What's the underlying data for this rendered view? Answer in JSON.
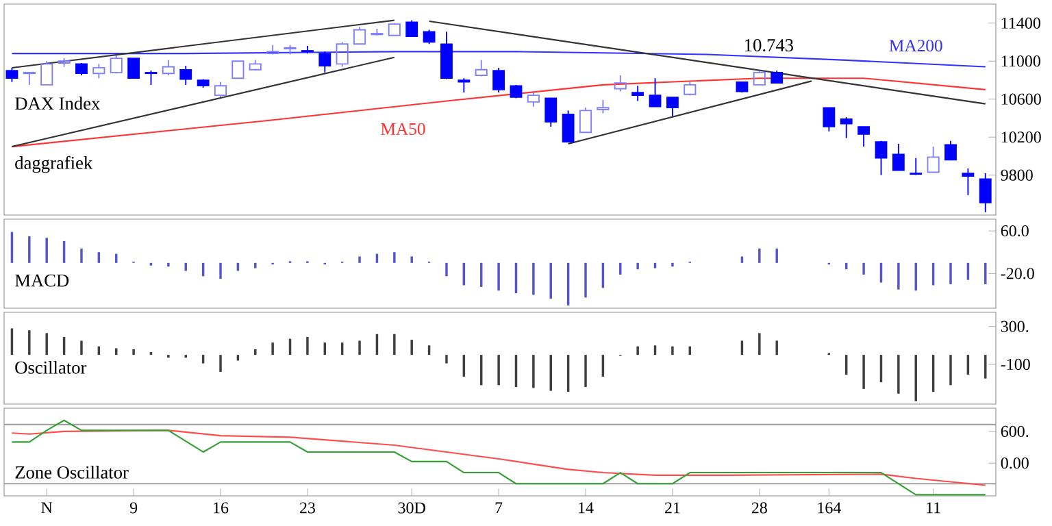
{
  "chart_data": [
    {
      "type": "candlestick",
      "title": "DAX Index",
      "subtitle": "daggrafiek",
      "categories": [
        null,
        null,
        null,
        null,
        null,
        null,
        null,
        null,
        null,
        null,
        null,
        null,
        null,
        null,
        null,
        null,
        null,
        null,
        null,
        null,
        null,
        null,
        null,
        null,
        null,
        null,
        null,
        null,
        null,
        null,
        null,
        null,
        null,
        null,
        null,
        null,
        null,
        null,
        null,
        null,
        null,
        null,
        null,
        null,
        null,
        null,
        null,
        null,
        null,
        null,
        null,
        null,
        null,
        null,
        null,
        null,
        null
      ],
      "colors": [
        "#0000ff",
        "#8080ff",
        "#8080ff",
        "#8080ff",
        "#0000ff",
        "#8080ff",
        "#8080ff",
        "#0000ff",
        "#0000ff",
        "#8080ff",
        "#0000ff",
        "#0000ff",
        "#8080ff",
        "#8080ff",
        "#8080ff",
        "#8080ff",
        "#8080ff",
        "#0000ff",
        "#0000ff",
        "#8080ff",
        "#8080ff",
        "#8080ff",
        "#8080ff",
        "#0000ff",
        "#0000ff",
        "#0000ff",
        "#0000ff",
        "#8080ff",
        "#0000ff",
        "#0000ff",
        "#8080ff",
        "#0000ff",
        "#0000ff",
        "#8080ff",
        "#8080ff",
        "#8080ff",
        "#0000ff",
        "#0000ff",
        "#0000ff",
        "#8080ff",
        null,
        null,
        "#0000ff",
        "#8080ff",
        "#0000ff",
        null,
        null,
        "#0000ff",
        "#0000ff",
        "#0000ff",
        "#0000ff",
        "#0000ff",
        "#0000ff",
        "#8080ff",
        "#0000ff",
        "#0000ff",
        "#0000ff"
      ],
      "ohlc": [
        [
          10900,
          10930,
          10780,
          10820
        ],
        [
          10870,
          10880,
          10750,
          10880
        ],
        [
          10750,
          11000,
          10750,
          10970
        ],
        [
          10980,
          11030,
          10940,
          11000
        ],
        [
          10970,
          10980,
          10850,
          10870
        ],
        [
          10870,
          10970,
          10820,
          10930
        ],
        [
          10880,
          11060,
          10870,
          11030
        ],
        [
          11030,
          11030,
          10820,
          10820
        ],
        [
          10880,
          10900,
          10750,
          10870
        ],
        [
          10870,
          11010,
          10850,
          10940
        ],
        [
          10910,
          10950,
          10750,
          10810
        ],
        [
          10800,
          10810,
          10720,
          10740
        ],
        [
          10640,
          10780,
          10620,
          10740
        ],
        [
          10820,
          11000,
          10820,
          11000
        ],
        [
          10910,
          11010,
          10900,
          10970
        ],
        [
          11080,
          11170,
          11070,
          11100
        ],
        [
          11130,
          11170,
          11070,
          11140
        ],
        [
          11110,
          11160,
          11080,
          11100
        ],
        [
          11080,
          11100,
          10880,
          10950
        ],
        [
          10970,
          11200,
          10940,
          11180
        ],
        [
          11180,
          11360,
          11180,
          11330
        ],
        [
          11280,
          11340,
          11270,
          11290
        ],
        [
          11270,
          11400,
          11270,
          11390
        ],
        [
          11410,
          11430,
          11260,
          11260
        ],
        [
          11310,
          11330,
          11180,
          11200
        ],
        [
          11180,
          11310,
          10810,
          10820
        ],
        [
          10800,
          10820,
          10670,
          10780
        ],
        [
          10850,
          11010,
          10840,
          10910
        ],
        [
          10900,
          10930,
          10670,
          10700
        ],
        [
          10740,
          10750,
          10610,
          10620
        ],
        [
          10570,
          10670,
          10520,
          10640
        ],
        [
          10610,
          10610,
          10310,
          10360
        ],
        [
          10440,
          10480,
          10150,
          10150
        ],
        [
          10250,
          10510,
          10250,
          10480
        ],
        [
          10490,
          10590,
          10450,
          10510
        ],
        [
          10710,
          10850,
          10680,
          10770
        ],
        [
          10670,
          10740,
          10580,
          10640
        ],
        [
          10640,
          10820,
          10520,
          10520
        ],
        [
          10620,
          10620,
          10420,
          10510
        ],
        [
          10650,
          10780,
          10640,
          10750
        ],
        null,
        null,
        [
          10780,
          10780,
          10670,
          10680
        ],
        [
          10750,
          10900,
          10750,
          10880
        ],
        [
          10880,
          10900,
          10770,
          10770
        ],
        null,
        null,
        [
          10510,
          10510,
          10260,
          10310
        ],
        [
          10390,
          10410,
          10190,
          10340
        ],
        [
          10310,
          10310,
          10100,
          10230
        ],
        [
          10150,
          10160,
          9800,
          9980
        ],
        [
          10020,
          10130,
          9850,
          9850
        ],
        [
          9820,
          9980,
          9800,
          9810
        ],
        [
          9830,
          10100,
          9830,
          9990
        ],
        [
          10120,
          10160,
          9960,
          9960
        ],
        [
          9820,
          9870,
          9590,
          9790
        ],
        [
          9760,
          9820,
          9410,
          9510
        ]
      ],
      "series": [
        {
          "type": "line",
          "name": "MA200",
          "color": "#3333ff",
          "values": [
            11080,
            null,
            null,
            null,
            null,
            null,
            null,
            null,
            null,
            null,
            11080,
            null,
            null,
            null,
            null,
            null,
            null,
            null,
            null,
            null,
            null,
            null,
            11100,
            null,
            null,
            null,
            null,
            null,
            null,
            11100,
            null,
            null,
            null,
            null,
            null,
            null,
            null,
            null,
            null,
            null,
            11070,
            null,
            null,
            null,
            null,
            null,
            null,
            null,
            11010,
            null,
            null,
            null,
            null,
            null,
            null,
            null,
            10940
          ]
        },
        {
          "type": "line",
          "name": "MA50",
          "color": "#ff3333",
          "values": [
            10100,
            null,
            null,
            null,
            null,
            null,
            null,
            null,
            null,
            null,
            null,
            null,
            null,
            null,
            null,
            10380,
            null,
            null,
            null,
            null,
            null,
            null,
            null,
            null,
            null,
            10580,
            null,
            null,
            null,
            null,
            null,
            null,
            null,
            null,
            10750,
            null,
            null,
            null,
            null,
            null,
            null,
            null,
            null,
            10820,
            null,
            null,
            null,
            null,
            null,
            10820,
            null,
            null,
            null,
            null,
            null,
            null,
            10700
          ]
        },
        {
          "type": "line",
          "color": "#333333",
          "values": [
            10930,
            null,
            null,
            null,
            null,
            null,
            null,
            null,
            null,
            null,
            null,
            null,
            null,
            null,
            null,
            null,
            null,
            null,
            null,
            null,
            null,
            null,
            11430,
            null,
            null,
            null,
            null,
            null,
            null,
            null,
            null,
            null,
            null,
            null,
            null,
            null,
            null,
            null,
            null,
            null,
            null,
            null,
            null,
            null,
            null,
            null,
            null,
            null,
            null,
            null,
            null,
            null,
            null,
            null,
            null,
            null,
            null
          ]
        },
        {
          "type": "line",
          "color": "#333333",
          "values": [
            10100,
            null,
            null,
            null,
            null,
            null,
            null,
            null,
            null,
            null,
            null,
            null,
            null,
            null,
            null,
            null,
            null,
            null,
            null,
            null,
            null,
            null,
            11040,
            null,
            null,
            null,
            null,
            null,
            null,
            null,
            null,
            null,
            null,
            null,
            null,
            null,
            null,
            null,
            null,
            null,
            null,
            null,
            null,
            null,
            null,
            null,
            null,
            null,
            null,
            null,
            null,
            null,
            null,
            null,
            null,
            null,
            null
          ]
        },
        {
          "type": "line",
          "color": "#333333",
          "values": [
            null,
            null,
            null,
            null,
            null,
            null,
            null,
            null,
            null,
            null,
            null,
            null,
            null,
            null,
            null,
            null,
            null,
            null,
            null,
            null,
            null,
            null,
            null,
            null,
            11420,
            null,
            null,
            null,
            null,
            null,
            null,
            null,
            null,
            null,
            null,
            null,
            null,
            null,
            null,
            null,
            null,
            null,
            null,
            null,
            null,
            null,
            null,
            null,
            null,
            null,
            null,
            null,
            null,
            null,
            null,
            null,
            10550
          ]
        },
        {
          "type": "line",
          "color": "#333333",
          "values": [
            null,
            null,
            null,
            null,
            null,
            null,
            null,
            null,
            null,
            null,
            null,
            null,
            null,
            null,
            null,
            null,
            null,
            null,
            null,
            null,
            null,
            null,
            null,
            null,
            null,
            null,
            null,
            null,
            null,
            null,
            null,
            null,
            10130,
            null,
            null,
            null,
            null,
            null,
            null,
            null,
            null,
            null,
            null,
            null,
            null,
            null,
            10790,
            null,
            null,
            null,
            null,
            null,
            null,
            null,
            null,
            null,
            null
          ]
        }
      ],
      "ylim": [
        9380,
        11600
      ],
      "yticks": [
        11400,
        11000,
        10600,
        10200,
        9800
      ],
      "tick_labels": "y",
      "annotations": [
        "10.743"
      ]
    },
    {
      "type": "bar",
      "title": "MACD",
      "color": "#5555cc",
      "categories": [
        null,
        null,
        null,
        null,
        null,
        null,
        null,
        null,
        null,
        null,
        null,
        null,
        null,
        null,
        null,
        null,
        null,
        null,
        null,
        null,
        null,
        null,
        null,
        null,
        null,
        null,
        null,
        null,
        null,
        null,
        null,
        null,
        null,
        null,
        null,
        null,
        null,
        null,
        null,
        null,
        null,
        null,
        null,
        null,
        null,
        null,
        null,
        null,
        null,
        null,
        null,
        null,
        null,
        null,
        null,
        null,
        null
      ],
      "values": [
        58,
        50,
        47,
        41,
        27,
        20,
        17,
        2,
        -5,
        -7,
        -15,
        -25,
        -30,
        -15,
        -10,
        -3,
        3,
        3,
        -3,
        2,
        12,
        17,
        20,
        12,
        2,
        -25,
        -42,
        -45,
        -52,
        -57,
        -60,
        -67,
        -80,
        -65,
        -47,
        -22,
        -12,
        -10,
        -7,
        2,
        null,
        null,
        12,
        27,
        27,
        null,
        null,
        -3,
        -12,
        -22,
        -37,
        -50,
        -52,
        -42,
        -40,
        -32,
        -40
      ],
      "ylim": [
        -85,
        82
      ],
      "yticks": [
        {
          "value": 60,
          "label": "60.0"
        },
        {
          "value": -20,
          "label": "-20.0"
        }
      ],
      "tick_labels": "y"
    },
    {
      "type": "bar",
      "title": "Oscillator",
      "color": "#404040",
      "categories": [
        null,
        null,
        null,
        null,
        null,
        null,
        null,
        null,
        null,
        null,
        null,
        null,
        null,
        null,
        null,
        null,
        null,
        null,
        null,
        null,
        null,
        null,
        null,
        null,
        null,
        null,
        null,
        null,
        null,
        null,
        null,
        null,
        null,
        null,
        null,
        null,
        null,
        null,
        null,
        null,
        null,
        null,
        null,
        null,
        null,
        null,
        null,
        null,
        null,
        null,
        null,
        null,
        null,
        null,
        null,
        null,
        null
      ],
      "values": [
        280,
        260,
        230,
        190,
        150,
        90,
        70,
        60,
        30,
        -30,
        -30,
        -90,
        -180,
        -60,
        60,
        130,
        170,
        190,
        130,
        130,
        150,
        220,
        220,
        160,
        100,
        -90,
        -230,
        -320,
        -320,
        -340,
        -350,
        -380,
        -390,
        -340,
        -230,
        -10,
        90,
        100,
        90,
        90,
        null,
        null,
        150,
        230,
        150,
        null,
        null,
        20,
        -210,
        -360,
        -290,
        -410,
        -490,
        -390,
        -320,
        -210,
        -250
      ],
      "ylim": [
        -520,
        450
      ],
      "yticks": [
        {
          "value": 300,
          "label": "300."
        },
        {
          "value": -100,
          "label": "-100"
        }
      ],
      "tick_labels": "y"
    },
    {
      "type": "line",
      "title": "Zone Oscillator",
      "categories": [
        null,
        null,
        "N",
        null,
        null,
        null,
        null,
        "9",
        null,
        null,
        null,
        null,
        "16",
        null,
        null,
        null,
        null,
        "23",
        null,
        null,
        null,
        null,
        null,
        "30D",
        null,
        null,
        null,
        null,
        "7",
        null,
        null,
        null,
        null,
        "14",
        null,
        null,
        null,
        null,
        "21",
        null,
        null,
        null,
        null,
        "28",
        null,
        null,
        null,
        "164",
        null,
        null,
        null,
        null,
        null,
        "11",
        null,
        null,
        null
      ],
      "series": [
        {
          "color": "#ff4d4d",
          "values": [
            570,
            550,
            null,
            600,
            null,
            null,
            null,
            null,
            null,
            620,
            null,
            null,
            520,
            null,
            null,
            null,
            490,
            null,
            null,
            null,
            null,
            null,
            340,
            null,
            null,
            210,
            null,
            null,
            80,
            null,
            null,
            null,
            -120,
            null,
            -180,
            null,
            null,
            -230,
            null,
            null,
            null,
            -230,
            null,
            null,
            null,
            null,
            null,
            null,
            null,
            null,
            -210,
            null,
            -290,
            null,
            null,
            null,
            -420
          ]
        },
        {
          "color": "#33a033",
          "values": [
            400,
            400,
            620,
            810,
            620,
            null,
            null,
            null,
            null,
            620,
            null,
            210,
            400,
            null,
            null,
            null,
            400,
            210,
            null,
            null,
            null,
            null,
            210,
            30,
            null,
            30,
            -180,
            null,
            -180,
            -390,
            null,
            null,
            null,
            null,
            -390,
            -180,
            -390,
            null,
            -390,
            -180,
            null,
            null,
            null,
            null,
            null,
            null,
            null,
            null,
            null,
            null,
            -180,
            null,
            -600,
            null,
            null,
            null,
            -600
          ]
        }
      ],
      "ref_lines": [
        {
          "axis": "y",
          "value": 730,
          "color": "#a0a0a0"
        },
        {
          "axis": "y",
          "value": -390,
          "color": "#a0a0a0"
        }
      ],
      "ylim": [
        -620,
        1040
      ],
      "yticks": [
        {
          "value": 600,
          "label": "600."
        },
        {
          "value": 0,
          "label": "0.00"
        }
      ]
    }
  ]
}
